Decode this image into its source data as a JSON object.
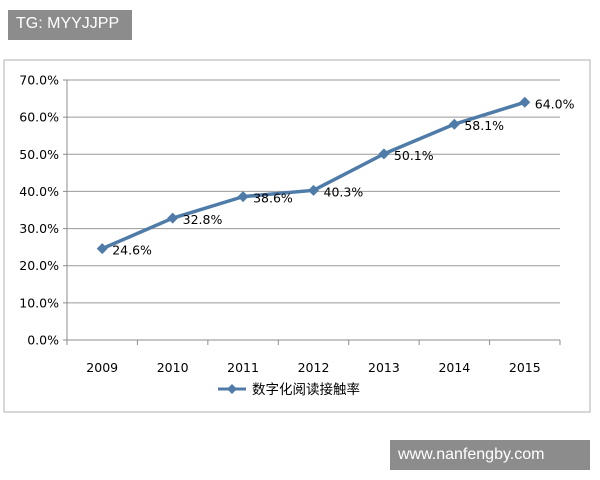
{
  "watermark_top": "TG: MYYJJPP",
  "watermark_bottom": "www.nanfengby.com",
  "colors": {
    "series": "#4f7ba8",
    "axis": "#8c8c8c",
    "grid": "#9a9a9a",
    "text": "#000000",
    "badge": "#8c8c8c"
  },
  "chart_data": {
    "type": "line",
    "categories": [
      "2009",
      "2010",
      "2011",
      "2012",
      "2013",
      "2014",
      "2015"
    ],
    "series": [
      {
        "name": "数字化阅读接触率",
        "values": [
          24.6,
          32.8,
          38.6,
          40.3,
          50.1,
          58.1,
          64.0
        ],
        "labels": [
          "24.6%",
          "32.8%",
          "38.6%",
          "40.3%",
          "50.1%",
          "58.1%",
          "64.0%"
        ]
      }
    ],
    "y_ticks": [
      "0.0%",
      "10.0%",
      "20.0%",
      "30.0%",
      "40.0%",
      "50.0%",
      "60.0%",
      "70.0%"
    ],
    "ylim": [
      0,
      70
    ],
    "grid": true,
    "legend": "bottom"
  }
}
